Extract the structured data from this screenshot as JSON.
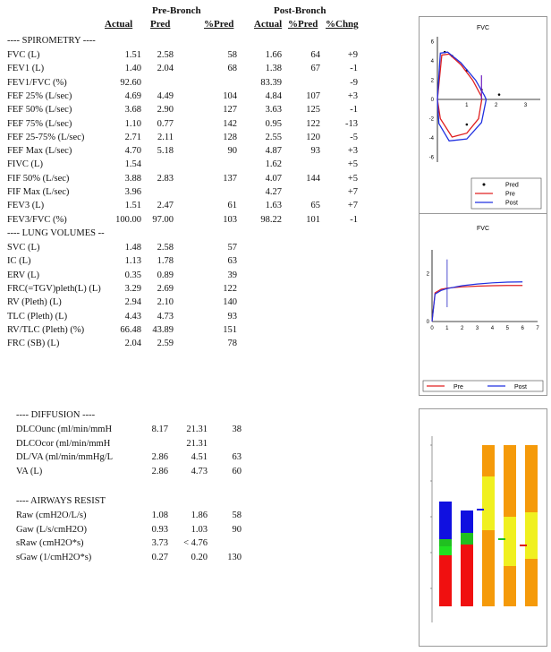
{
  "headers": {
    "pre": "Pre-Bronch",
    "post": "Post-Bronch",
    "actual": "Actual",
    "pred": "Pred",
    "pct_pred": "%Pred",
    "post_actual": "Actual",
    "post_pct_pred": "%Pred",
    "pct_chng": "%Chng"
  },
  "spirometry": {
    "title": "---- SPIROMETRY ----",
    "rows": [
      {
        "label": "FVC (L)",
        "actual": "1.51",
        "pred": "2.58",
        "pct_pred": "58",
        "post_actual": "1.66",
        "post_pct": "64",
        "chng": "+9"
      },
      {
        "label": "FEV1 (L)",
        "actual": "1.40",
        "pred": "2.04",
        "pct_pred": "68",
        "post_actual": "1.38",
        "post_pct": "67",
        "chng": "-1"
      },
      {
        "label": "FEV1/FVC (%)",
        "actual": "92.60",
        "pred": "",
        "pct_pred": "",
        "post_actual": "83.39",
        "post_pct": "",
        "chng": "-9"
      },
      {
        "label": "FEF 25% (L/sec)",
        "actual": "4.69",
        "pred": "4.49",
        "pct_pred": "104",
        "post_actual": "4.84",
        "post_pct": "107",
        "chng": "+3"
      },
      {
        "label": "FEF 50% (L/sec)",
        "actual": "3.68",
        "pred": "2.90",
        "pct_pred": "127",
        "post_actual": "3.63",
        "post_pct": "125",
        "chng": "-1"
      },
      {
        "label": "FEF 75% (L/sec)",
        "actual": "1.10",
        "pred": "0.77",
        "pct_pred": "142",
        "post_actual": "0.95",
        "post_pct": "122",
        "chng": "-13"
      },
      {
        "label": "FEF 25-75% (L/sec)",
        "actual": "2.71",
        "pred": "2.11",
        "pct_pred": "128",
        "post_actual": "2.55",
        "post_pct": "120",
        "chng": "-5"
      },
      {
        "label": "FEF Max (L/sec)",
        "actual": "4.70",
        "pred": "5.18",
        "pct_pred": "90",
        "post_actual": "4.87",
        "post_pct": "93",
        "chng": "+3"
      },
      {
        "label": "FIVC (L)",
        "actual": "1.54",
        "pred": "",
        "pct_pred": "",
        "post_actual": "1.62",
        "post_pct": "",
        "chng": "+5"
      },
      {
        "label": "FIF 50% (L/sec)",
        "actual": "3.88",
        "pred": "2.83",
        "pct_pred": "137",
        "post_actual": "4.07",
        "post_pct": "144",
        "chng": "+5"
      },
      {
        "label": "FIF Max (L/sec)",
        "actual": "3.96",
        "pred": "",
        "pct_pred": "",
        "post_actual": "4.27",
        "post_pct": "",
        "chng": "+7"
      },
      {
        "label": "FEV3 (L)",
        "actual": "1.51",
        "pred": "2.47",
        "pct_pred": "61",
        "post_actual": "1.63",
        "post_pct": "65",
        "chng": "+7"
      },
      {
        "label": "FEV3/FVC (%)",
        "actual": "100.00",
        "pred": "97.00",
        "pct_pred": "103",
        "post_actual": "98.22",
        "post_pct": "101",
        "chng": "-1"
      }
    ]
  },
  "lung_volumes": {
    "title": "---- LUNG VOLUMES --",
    "rows": [
      {
        "label": "SVC (L)",
        "actual": "1.48",
        "pred": "2.58",
        "pct_pred": "57"
      },
      {
        "label": "IC (L)",
        "actual": "1.13",
        "pred": "1.78",
        "pct_pred": "63"
      },
      {
        "label": "ERV (L)",
        "actual": "0.35",
        "pred": "0.89",
        "pct_pred": "39"
      },
      {
        "label": "FRC(=TGV)pleth(L) (L)",
        "actual": "3.29",
        "pred": "2.69",
        "pct_pred": "122"
      },
      {
        "label": "RV (Pleth) (L)",
        "actual": "2.94",
        "pred": "2.10",
        "pct_pred": "140"
      },
      {
        "label": "TLC (Pleth) (L)",
        "actual": "4.43",
        "pred": "4.73",
        "pct_pred": "93"
      },
      {
        "label": "RV/TLC (Pleth) (%)",
        "actual": "66.48",
        "pred": "43.89",
        "pct_pred": "151"
      },
      {
        "label": "FRC (SB) (L)",
        "actual": "2.04",
        "pred": "2.59",
        "pct_pred": "78"
      }
    ]
  },
  "diffusion": {
    "title": "---- DIFFUSION ----",
    "rows": [
      {
        "label": "DLCOunc (ml/min/mmH",
        "actual": "8.17",
        "pred": "21.31",
        "pct_pred": "38"
      },
      {
        "label": "DLCOcor (ml/min/mmH",
        "actual": "",
        "pred": "21.31",
        "pct_pred": ""
      },
      {
        "label": "DL/VA (ml/min/mmHg/L",
        "actual": "2.86",
        "pred": "4.51",
        "pct_pred": "63"
      },
      {
        "label": "VA (L)",
        "actual": "2.86",
        "pred": "4.73",
        "pct_pred": "60"
      }
    ]
  },
  "airways": {
    "title": "---- AIRWAYS RESIST",
    "rows": [
      {
        "label": "Raw (cmH2O/L/s)",
        "actual": "1.08",
        "pred": "1.86",
        "pct_pred": "58"
      },
      {
        "label": "Gaw (L/s/cmH2O)",
        "actual": "0.93",
        "pred": "1.03",
        "pct_pred": "90"
      },
      {
        "label": "sRaw (cmH2O*s)",
        "actual": "3.73",
        "pred": "< 4.76",
        "pct_pred": ""
      },
      {
        "label": "sGaw (1/cmH2O*s)",
        "actual": "0.27",
        "pred": "0.20",
        "pct_pred": "130"
      }
    ]
  },
  "chart_data": [
    {
      "type": "line",
      "title": "FVC",
      "x_ticks": [
        "1",
        "2",
        "3"
      ],
      "y_ticks": [
        "6",
        "4",
        "2",
        "0",
        "-2",
        "-4",
        "-6"
      ],
      "xlim": [
        0,
        3.5
      ],
      "ylim": [
        -6.5,
        6.5
      ],
      "series": [
        {
          "name": "Pred",
          "color": "#000000",
          "points": [
            [
              0.25,
              4.9
            ],
            [
              0.5,
              4.5
            ],
            [
              1.0,
              3.0
            ],
            [
              1.5,
              1.0
            ],
            [
              2.1,
              0.5
            ],
            [
              1.0,
              -2.6
            ]
          ]
        },
        {
          "name": "Pre",
          "color": "#e02020",
          "points": [
            [
              0,
              0
            ],
            [
              0.15,
              4.6
            ],
            [
              0.4,
              4.7
            ],
            [
              0.8,
              3.6
            ],
            [
              1.2,
              2.0
            ],
            [
              1.5,
              0.3
            ],
            [
              1.51,
              0
            ],
            [
              1.4,
              -2.0
            ],
            [
              1.0,
              -3.5
            ],
            [
              0.5,
              -3.9
            ],
            [
              0.1,
              -2.0
            ],
            [
              0,
              0
            ]
          ]
        },
        {
          "name": "Post",
          "color": "#2030e0",
          "points": [
            [
              0,
              0
            ],
            [
              0.1,
              4.8
            ],
            [
              0.35,
              4.9
            ],
            [
              0.8,
              3.8
            ],
            [
              1.3,
              2.0
            ],
            [
              1.6,
              0.4
            ],
            [
              1.66,
              0
            ],
            [
              1.5,
              -2.4
            ],
            [
              1.0,
              -4.1
            ],
            [
              0.4,
              -4.3
            ],
            [
              0.05,
              -2.5
            ],
            [
              0,
              0
            ]
          ]
        }
      ],
      "legend": [
        "Pred",
        "Pre",
        "Post"
      ]
    },
    {
      "type": "line",
      "title": "FVC",
      "x_ticks": [
        "0",
        "1",
        "2",
        "3",
        "4",
        "5",
        "6",
        "7"
      ],
      "y_ticks": [
        "2",
        "0"
      ],
      "xlim": [
        0,
        7
      ],
      "ylim": [
        0,
        3
      ],
      "series": [
        {
          "name": "Pre",
          "color": "#e02020",
          "points": [
            [
              0,
              0
            ],
            [
              0.2,
              1.2
            ],
            [
              0.6,
              1.35
            ],
            [
              1,
              1.4
            ],
            [
              2,
              1.45
            ],
            [
              3,
              1.48
            ],
            [
              4,
              1.5
            ],
            [
              5,
              1.51
            ],
            [
              6,
              1.51
            ]
          ]
        },
        {
          "name": "Post",
          "color": "#2030e0",
          "points": [
            [
              0,
              0
            ],
            [
              0.2,
              1.15
            ],
            [
              0.6,
              1.3
            ],
            [
              1,
              1.38
            ],
            [
              2,
              1.5
            ],
            [
              3,
              1.57
            ],
            [
              4,
              1.62
            ],
            [
              5,
              1.65
            ],
            [
              6,
              1.66
            ]
          ]
        }
      ],
      "legend": [
        "Pre",
        "Post"
      ]
    },
    {
      "type": "bar",
      "title": "",
      "categories": [
        "",
        "",
        "",
        "",
        ""
      ],
      "note": "stacked bars, labels illegible"
    }
  ]
}
